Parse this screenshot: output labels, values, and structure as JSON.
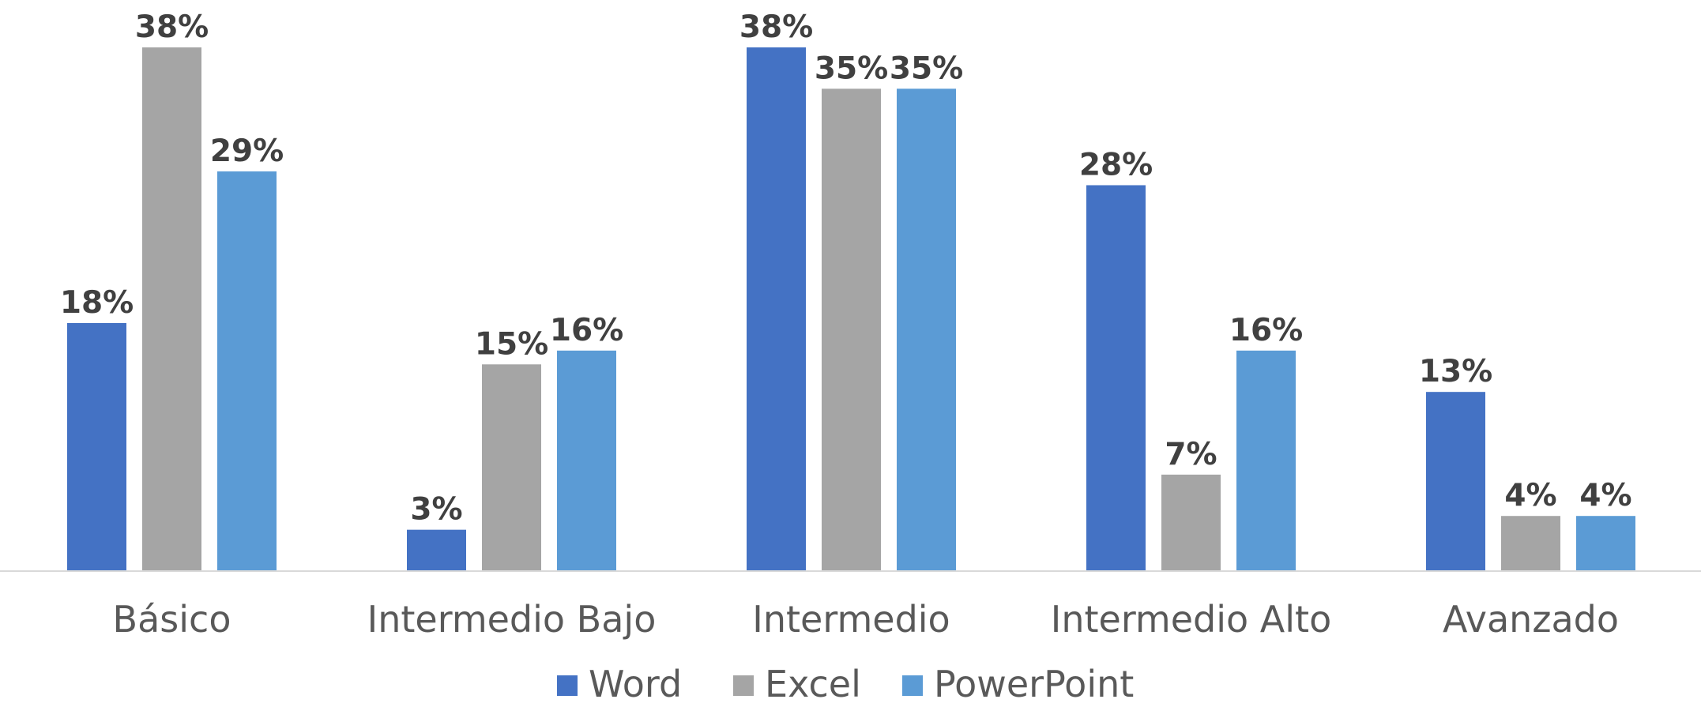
{
  "chart_data": {
    "type": "bar",
    "title": "",
    "xlabel": "",
    "ylabel": "",
    "categories": [
      "Básico",
      "Intermedio Bajo",
      "Intermedio",
      "Intermedio Alto",
      "Avanzado"
    ],
    "series": [
      {
        "name": "Word",
        "color": "#4472C4",
        "values": [
          18,
          3,
          38,
          28,
          13
        ],
        "labels": [
          "18%",
          "3%",
          "38%",
          "28%",
          "13%"
        ]
      },
      {
        "name": "Excel",
        "color": "#A5A5A5",
        "values": [
          38,
          15,
          35,
          7,
          4
        ],
        "labels": [
          "38%",
          "15%",
          "35%",
          "7%",
          "4%"
        ]
      },
      {
        "name": "PowerPoint",
        "color": "#5B9BD5",
        "values": [
          29,
          16,
          35,
          16,
          4
        ],
        "labels": [
          "29%",
          "16%",
          "35%",
          "16%",
          "4%"
        ]
      }
    ],
    "ylim": [
      0,
      38
    ],
    "grid": false,
    "legend_position": "bottom",
    "axis_color": "#D9D9D9"
  }
}
